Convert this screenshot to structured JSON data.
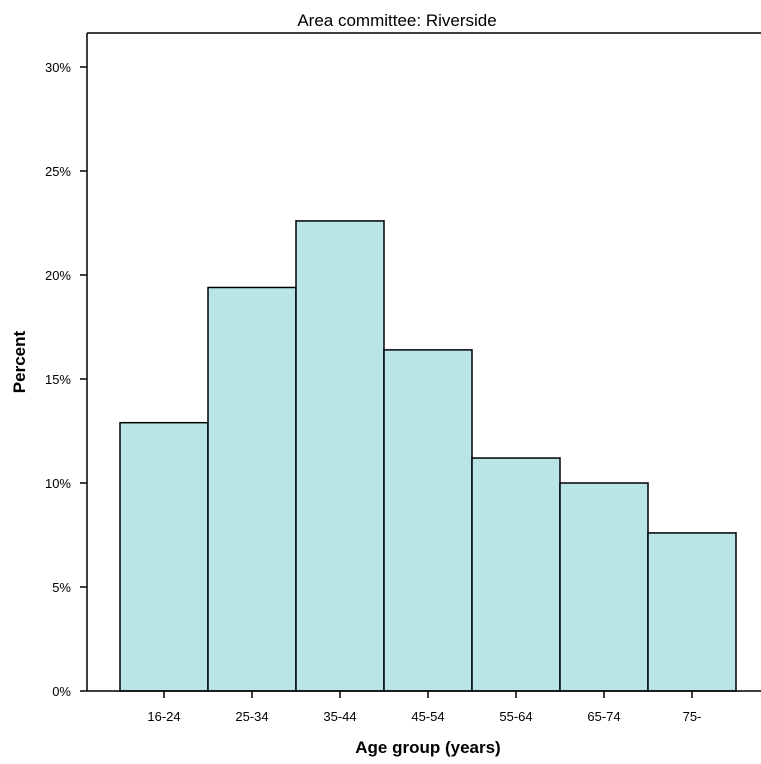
{
  "chart_data": {
    "type": "bar",
    "title": "Area committee: Riverside",
    "xlabel": "Age group (years)",
    "ylabel": "Percent",
    "categories": [
      "16-24",
      "25-34",
      "35-44",
      "45-54",
      "55-64",
      "65-74",
      "75-"
    ],
    "values": [
      12.9,
      19.4,
      22.6,
      16.4,
      11.2,
      10.0,
      7.6
    ],
    "ylim": [
      0,
      30
    ],
    "yticks": [
      0,
      5,
      10,
      15,
      20,
      25,
      30
    ],
    "ytick_labels": [
      "0%",
      "5%",
      "10%",
      "15%",
      "20%",
      "25%",
      "30%"
    ],
    "bar_color": "#b8e6e6",
    "bar_edge_color": "#000000",
    "grid": false,
    "legend": "none"
  }
}
